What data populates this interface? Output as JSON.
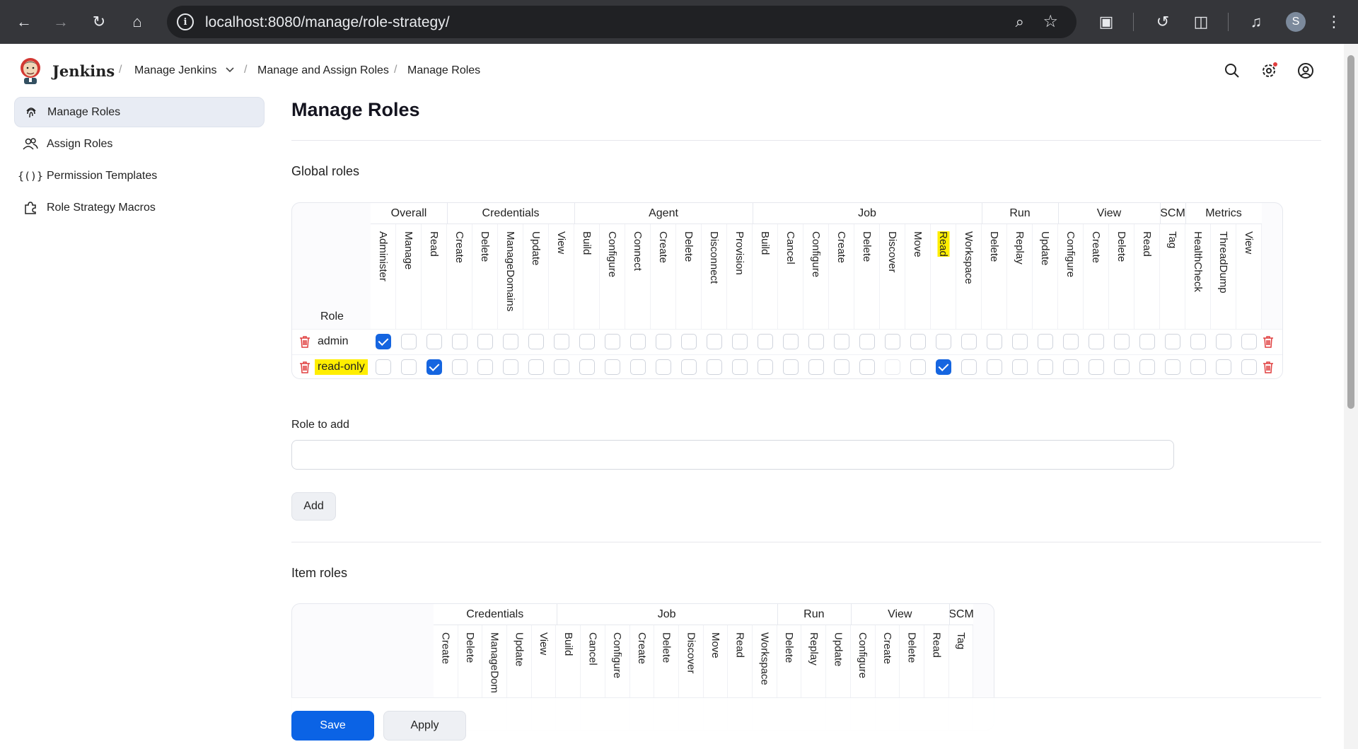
{
  "browser": {
    "url": "localhost:8080/manage/role-strategy/",
    "profile_initial": "S"
  },
  "header": {
    "brand": "Jenkins",
    "breadcrumbs": [
      "Manage Jenkins",
      "Manage and Assign Roles",
      "Manage Roles"
    ]
  },
  "sidebar": {
    "items": [
      {
        "label": "Manage Roles",
        "icon": "fingerprint-icon"
      },
      {
        "label": "Assign Roles",
        "icon": "users-icon"
      },
      {
        "label": "Permission Templates",
        "icon": "braces-icon"
      },
      {
        "label": "Role Strategy Macros",
        "icon": "puzzle-icon"
      }
    ]
  },
  "main": {
    "title": "Manage Roles",
    "global_roles_title": "Global roles",
    "role_column_label": "Role",
    "role_to_add_label": "Role to add",
    "role_to_add_value": "",
    "add_label": "Add",
    "item_roles_title": "Item roles",
    "save_label": "Save",
    "apply_label": "Apply"
  },
  "global_table": {
    "groups": [
      {
        "name": "Overall",
        "perms": [
          "Administer",
          "Manage",
          "Read"
        ]
      },
      {
        "name": "Credentials",
        "perms": [
          "Create",
          "Delete",
          "ManageDomains",
          "Update",
          "View"
        ]
      },
      {
        "name": "Agent",
        "perms": [
          "Build",
          "Configure",
          "Connect",
          "Create",
          "Delete",
          "Disconnect",
          "Provision"
        ]
      },
      {
        "name": "Job",
        "perms": [
          "Build",
          "Cancel",
          "Configure",
          "Create",
          "Delete",
          "Discover",
          "Move",
          "Read",
          "Workspace"
        ]
      },
      {
        "name": "Run",
        "perms": [
          "Delete",
          "Replay",
          "Update"
        ]
      },
      {
        "name": "View",
        "perms": [
          "Configure",
          "Create",
          "Delete",
          "Read"
        ]
      },
      {
        "name": "SCM",
        "perms": [
          "Tag"
        ]
      },
      {
        "name": "Metrics",
        "perms": [
          "HealthCheck",
          "ThreadDump",
          "View"
        ]
      }
    ],
    "highlighted_perm": "Job/Read",
    "roles": [
      {
        "name": "admin",
        "highlight": false,
        "checked": [
          "Overall/Administer"
        ],
        "disabled": []
      },
      {
        "name": "read-only",
        "highlight": true,
        "checked": [
          "Overall/Read",
          "Job/Read"
        ],
        "disabled": [
          "Job/Discover"
        ]
      }
    ]
  },
  "item_table": {
    "groups": [
      {
        "name": "Credentials",
        "perms": [
          "Create",
          "Delete",
          "ManageDom",
          "Update",
          "View"
        ]
      },
      {
        "name": "Job",
        "perms": [
          "Build",
          "Cancel",
          "Configure",
          "Create",
          "Delete",
          "Discover",
          "Move",
          "Read",
          "Workspace"
        ]
      },
      {
        "name": "Run",
        "perms": [
          "Delete",
          "Replay",
          "Update"
        ]
      },
      {
        "name": "View",
        "perms": [
          "Configure",
          "Create",
          "Delete",
          "Read"
        ]
      },
      {
        "name": "SCM",
        "perms": [
          "Tag"
        ]
      }
    ]
  },
  "colors": {
    "accent": "#0b63e5",
    "highlight": "#ffee00",
    "danger": "#e03e3e"
  }
}
